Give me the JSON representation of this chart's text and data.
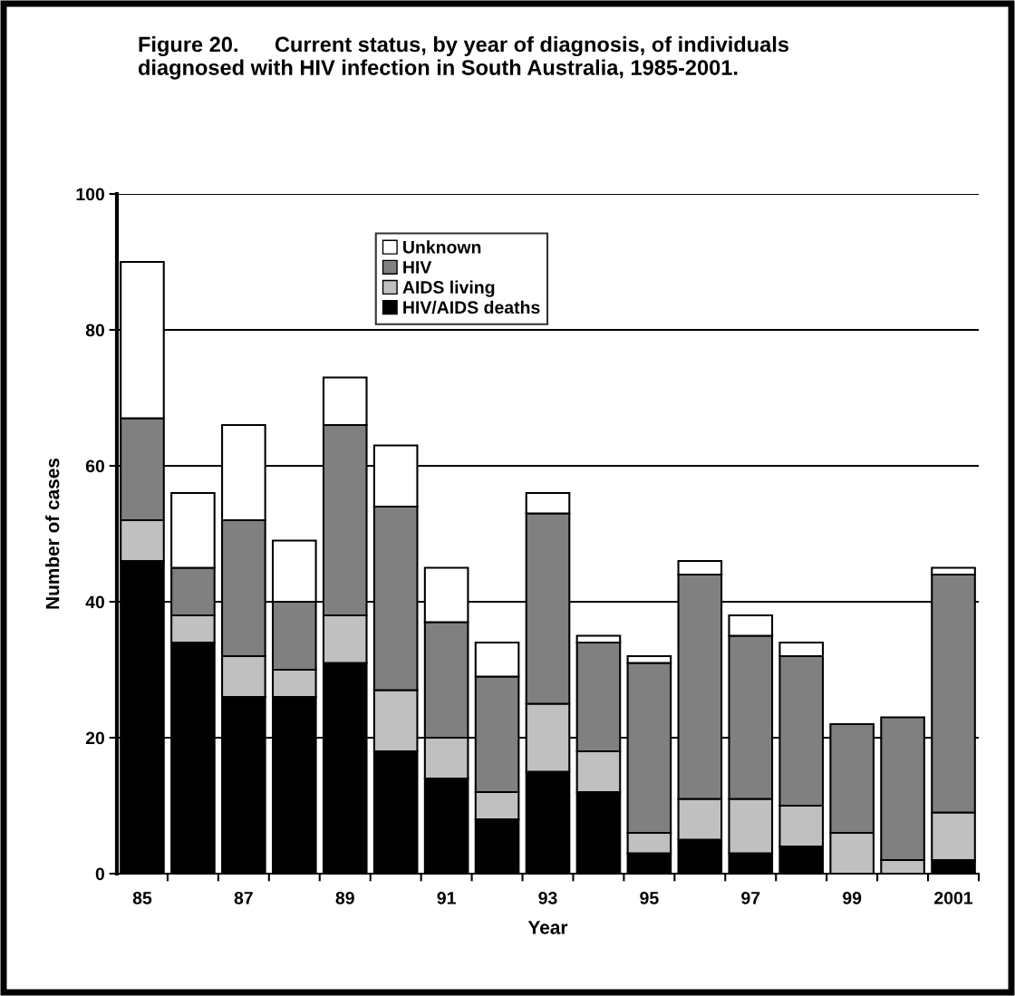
{
  "chart_data": {
    "type": "bar",
    "stacked": true,
    "title": "Figure 20.      Current status, by year of diagnosis, of individuals\ndiagnosed with HIV infection in South Australia, 1985-2001.",
    "xlabel": "Year",
    "ylabel": "Number of cases",
    "categories": [
      "85",
      null,
      "87",
      null,
      "89",
      null,
      "91",
      null,
      "93",
      null,
      "95",
      null,
      "97",
      null,
      "99",
      null,
      "2001"
    ],
    "series": [
      {
        "name": "HIV/AIDS deaths",
        "color": "#000000",
        "values": [
          46,
          34,
          26,
          26,
          31,
          18,
          14,
          8,
          15,
          12,
          3,
          5,
          3,
          4,
          0,
          0,
          2
        ]
      },
      {
        "name": "AIDS living",
        "color": "#c0c0c0",
        "values": [
          6,
          4,
          6,
          4,
          7,
          9,
          6,
          4,
          10,
          6,
          3,
          6,
          8,
          6,
          6,
          2,
          7
        ]
      },
      {
        "name": "HIV",
        "color": "#808080",
        "values": [
          15,
          7,
          20,
          10,
          28,
          27,
          17,
          17,
          28,
          16,
          25,
          33,
          24,
          22,
          16,
          21,
          35
        ]
      },
      {
        "name": "Unknown",
        "color": "#ffffff",
        "values": [
          23,
          11,
          14,
          9,
          7,
          9,
          8,
          5,
          3,
          1,
          1,
          2,
          3,
          2,
          0,
          0,
          1
        ]
      }
    ],
    "ylim": [
      0,
      100
    ],
    "yticks": [
      0,
      20,
      40,
      60,
      80,
      100
    ],
    "grid": "y",
    "legend": "top"
  }
}
